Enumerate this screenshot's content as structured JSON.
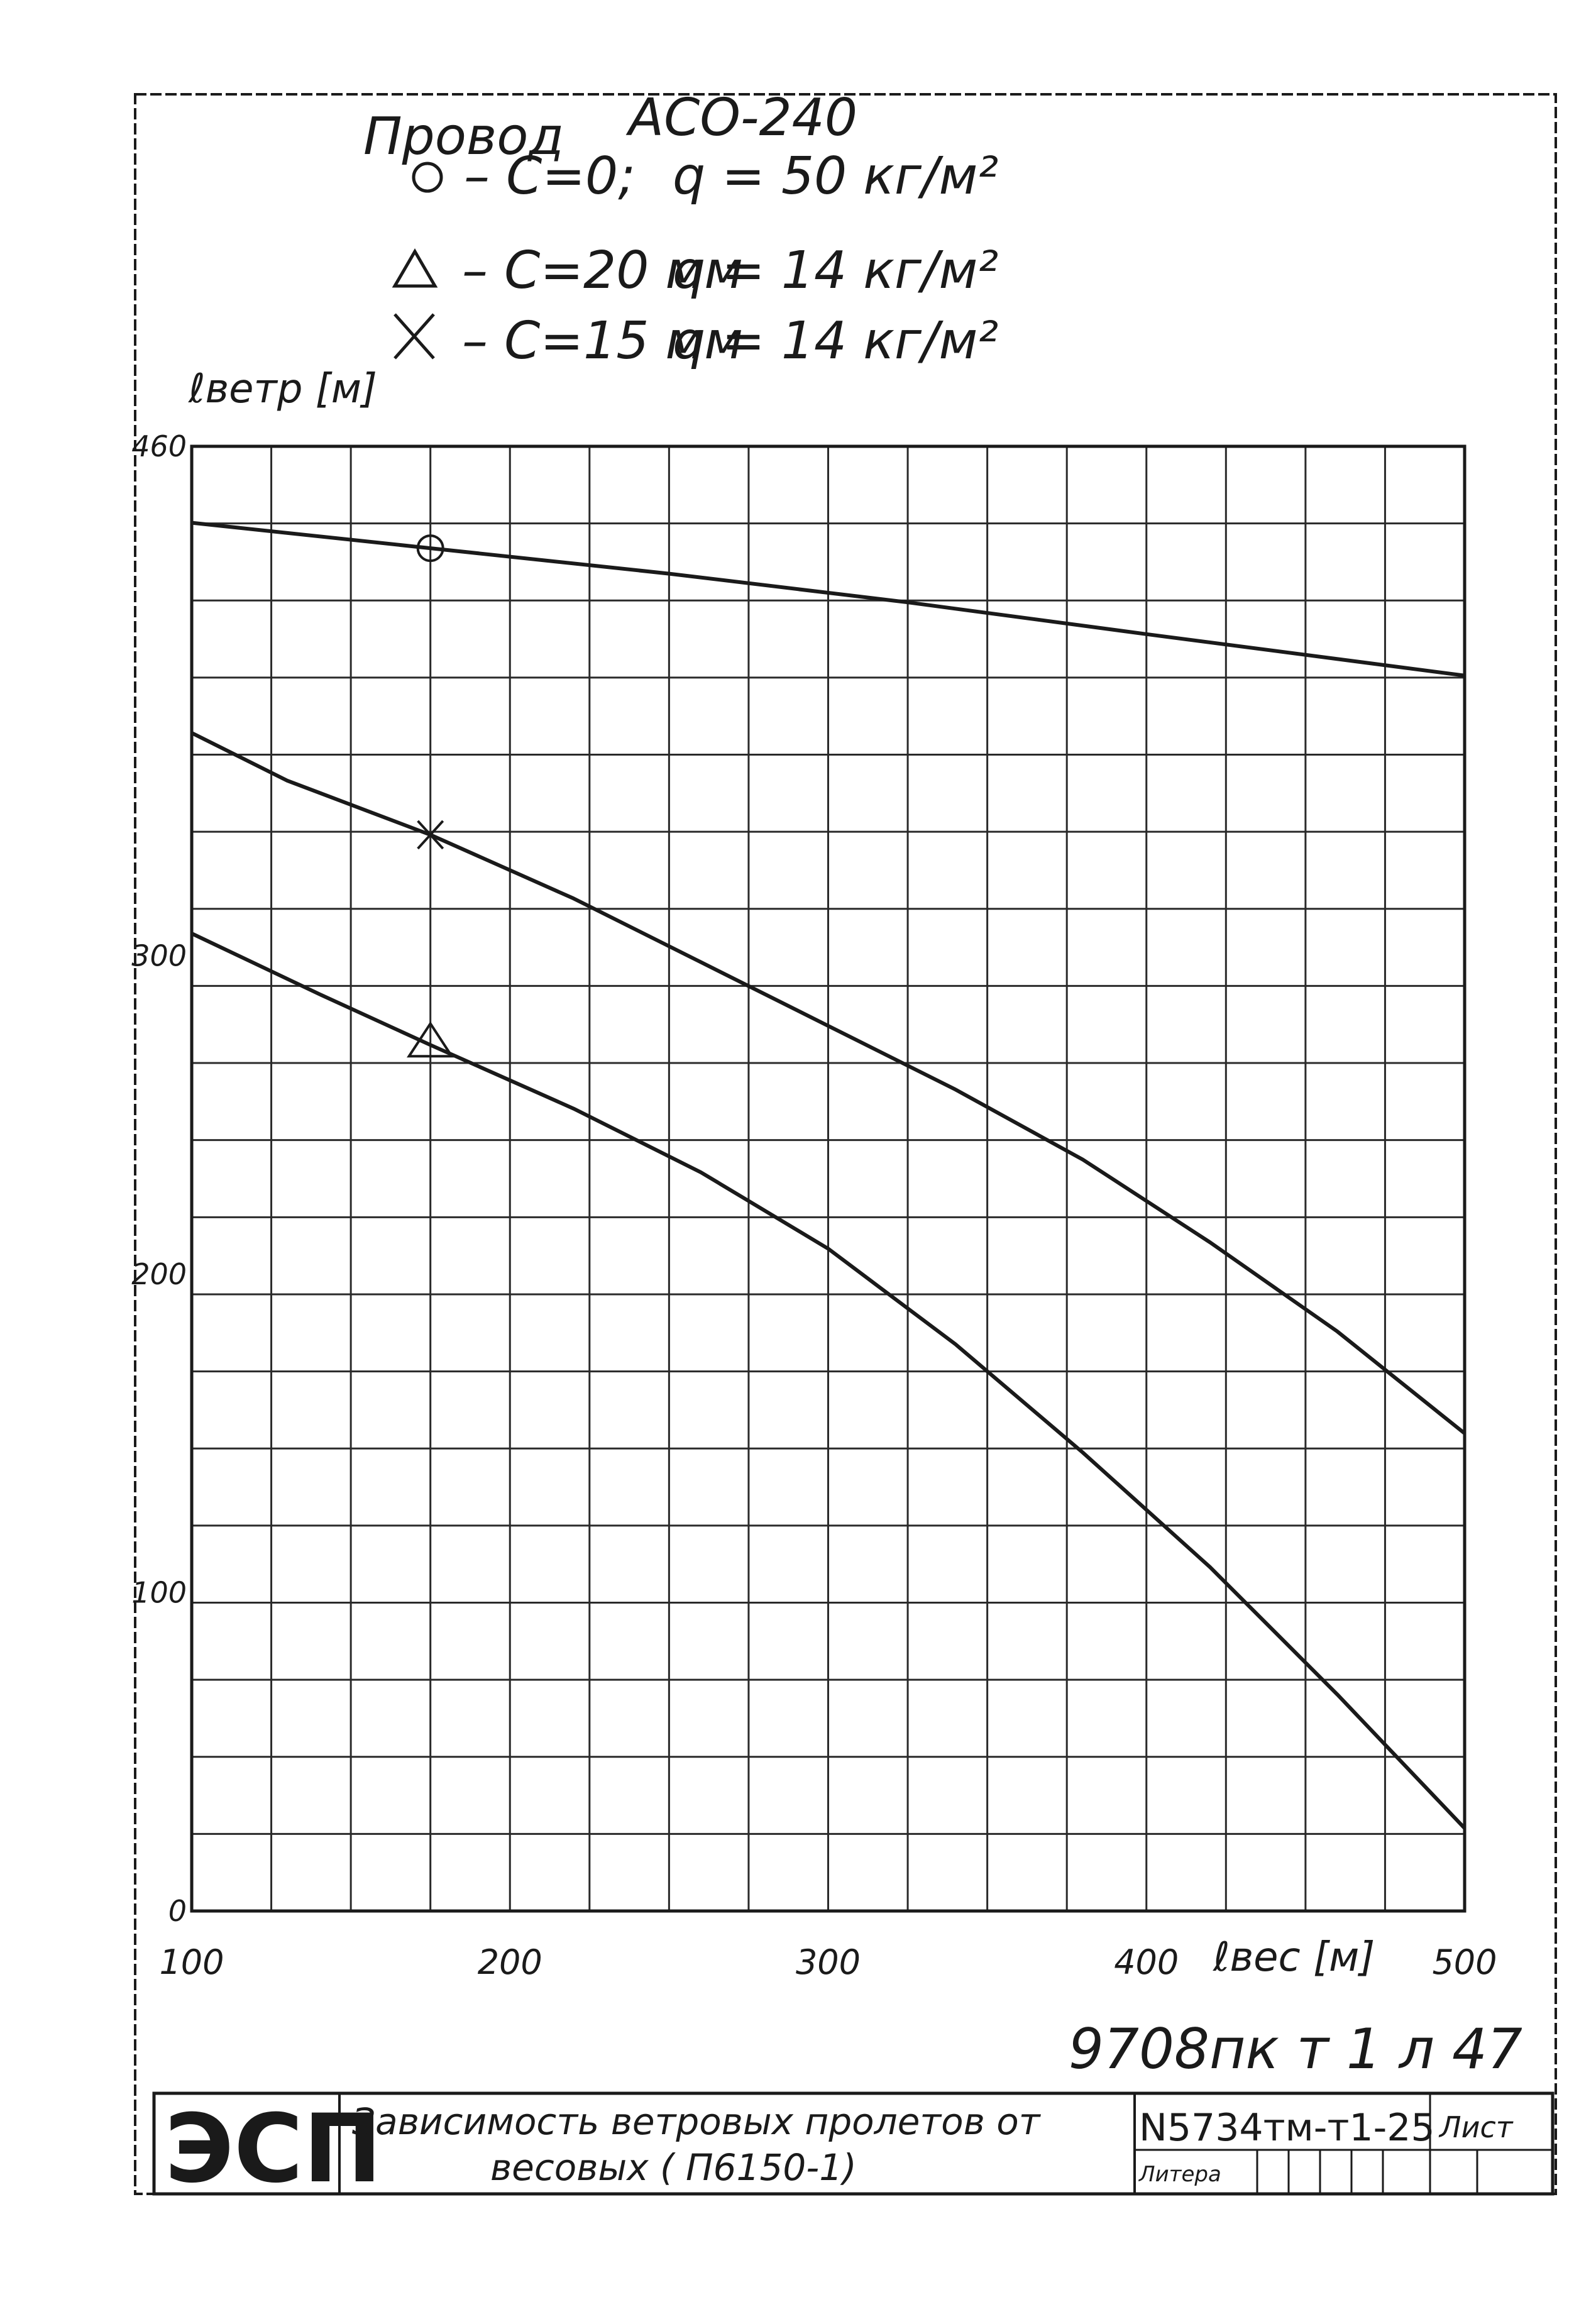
{
  "legend": {
    "title": "Провод",
    "wire": "АСО-240",
    "entries": [
      {
        "symbol": "circle",
        "label": "– С=0;",
        "load": "q = 50 кг/м²"
      },
      {
        "symbol": "triangle",
        "label": "– С=20 мм",
        "load": "q = 14 кг/м²"
      },
      {
        "symbol": "cross",
        "label": "– С=15 мм",
        "load": "q = 14 кг/м²"
      }
    ]
  },
  "chart_data": {
    "type": "line",
    "ylabel": "ℓветр [м]",
    "xlabel": "ℓвес [м]",
    "xlim": [
      100,
      500
    ],
    "ylim": [
      0,
      460
    ],
    "x_ticks": [
      "100",
      "200",
      "300",
      "400",
      "500"
    ],
    "y_ticks": [
      "460",
      "300",
      "200",
      "100",
      "0"
    ],
    "y_tick_values": [
      460,
      300,
      200,
      100,
      0
    ],
    "grid": true,
    "series": [
      {
        "marker": "circle",
        "x": [
          100,
          175,
          250,
          325,
          400,
          500
        ],
        "y": [
          436,
          428,
          420,
          411,
          401,
          388
        ]
      },
      {
        "marker": "cross",
        "x": [
          100,
          130,
          175,
          220,
          260,
          300,
          340,
          380,
          420,
          460,
          500
        ],
        "y": [
          370,
          355,
          338,
          318,
          298,
          278,
          258,
          236,
          210,
          182,
          150
        ]
      },
      {
        "marker": "triangle",
        "x": [
          100,
          140,
          175,
          220,
          260,
          300,
          340,
          380,
          420,
          460,
          500
        ],
        "y": [
          307,
          288,
          272,
          252,
          232,
          208,
          178,
          144,
          108,
          68,
          26
        ]
      }
    ],
    "marker_points": [
      {
        "marker": "circle",
        "x": 175,
        "y": 428
      },
      {
        "marker": "cross",
        "x": 175,
        "y": 338
      },
      {
        "marker": "triangle",
        "x": 175,
        "y": 272
      }
    ]
  },
  "annotation": "9708пк т 1 л 47",
  "stamp": {
    "org": "ЭСП",
    "title_line1": "Зависимость ветровых пролетов от",
    "title_line2": "весовых ( П6150-1)",
    "code": "N5734тм-т1-25",
    "sheet_label": "Лист",
    "litera_label": "Литера"
  },
  "colors": {
    "ink": "#1a1a1a",
    "grid": "#2a2a2a",
    "paper": "#ffffff"
  }
}
